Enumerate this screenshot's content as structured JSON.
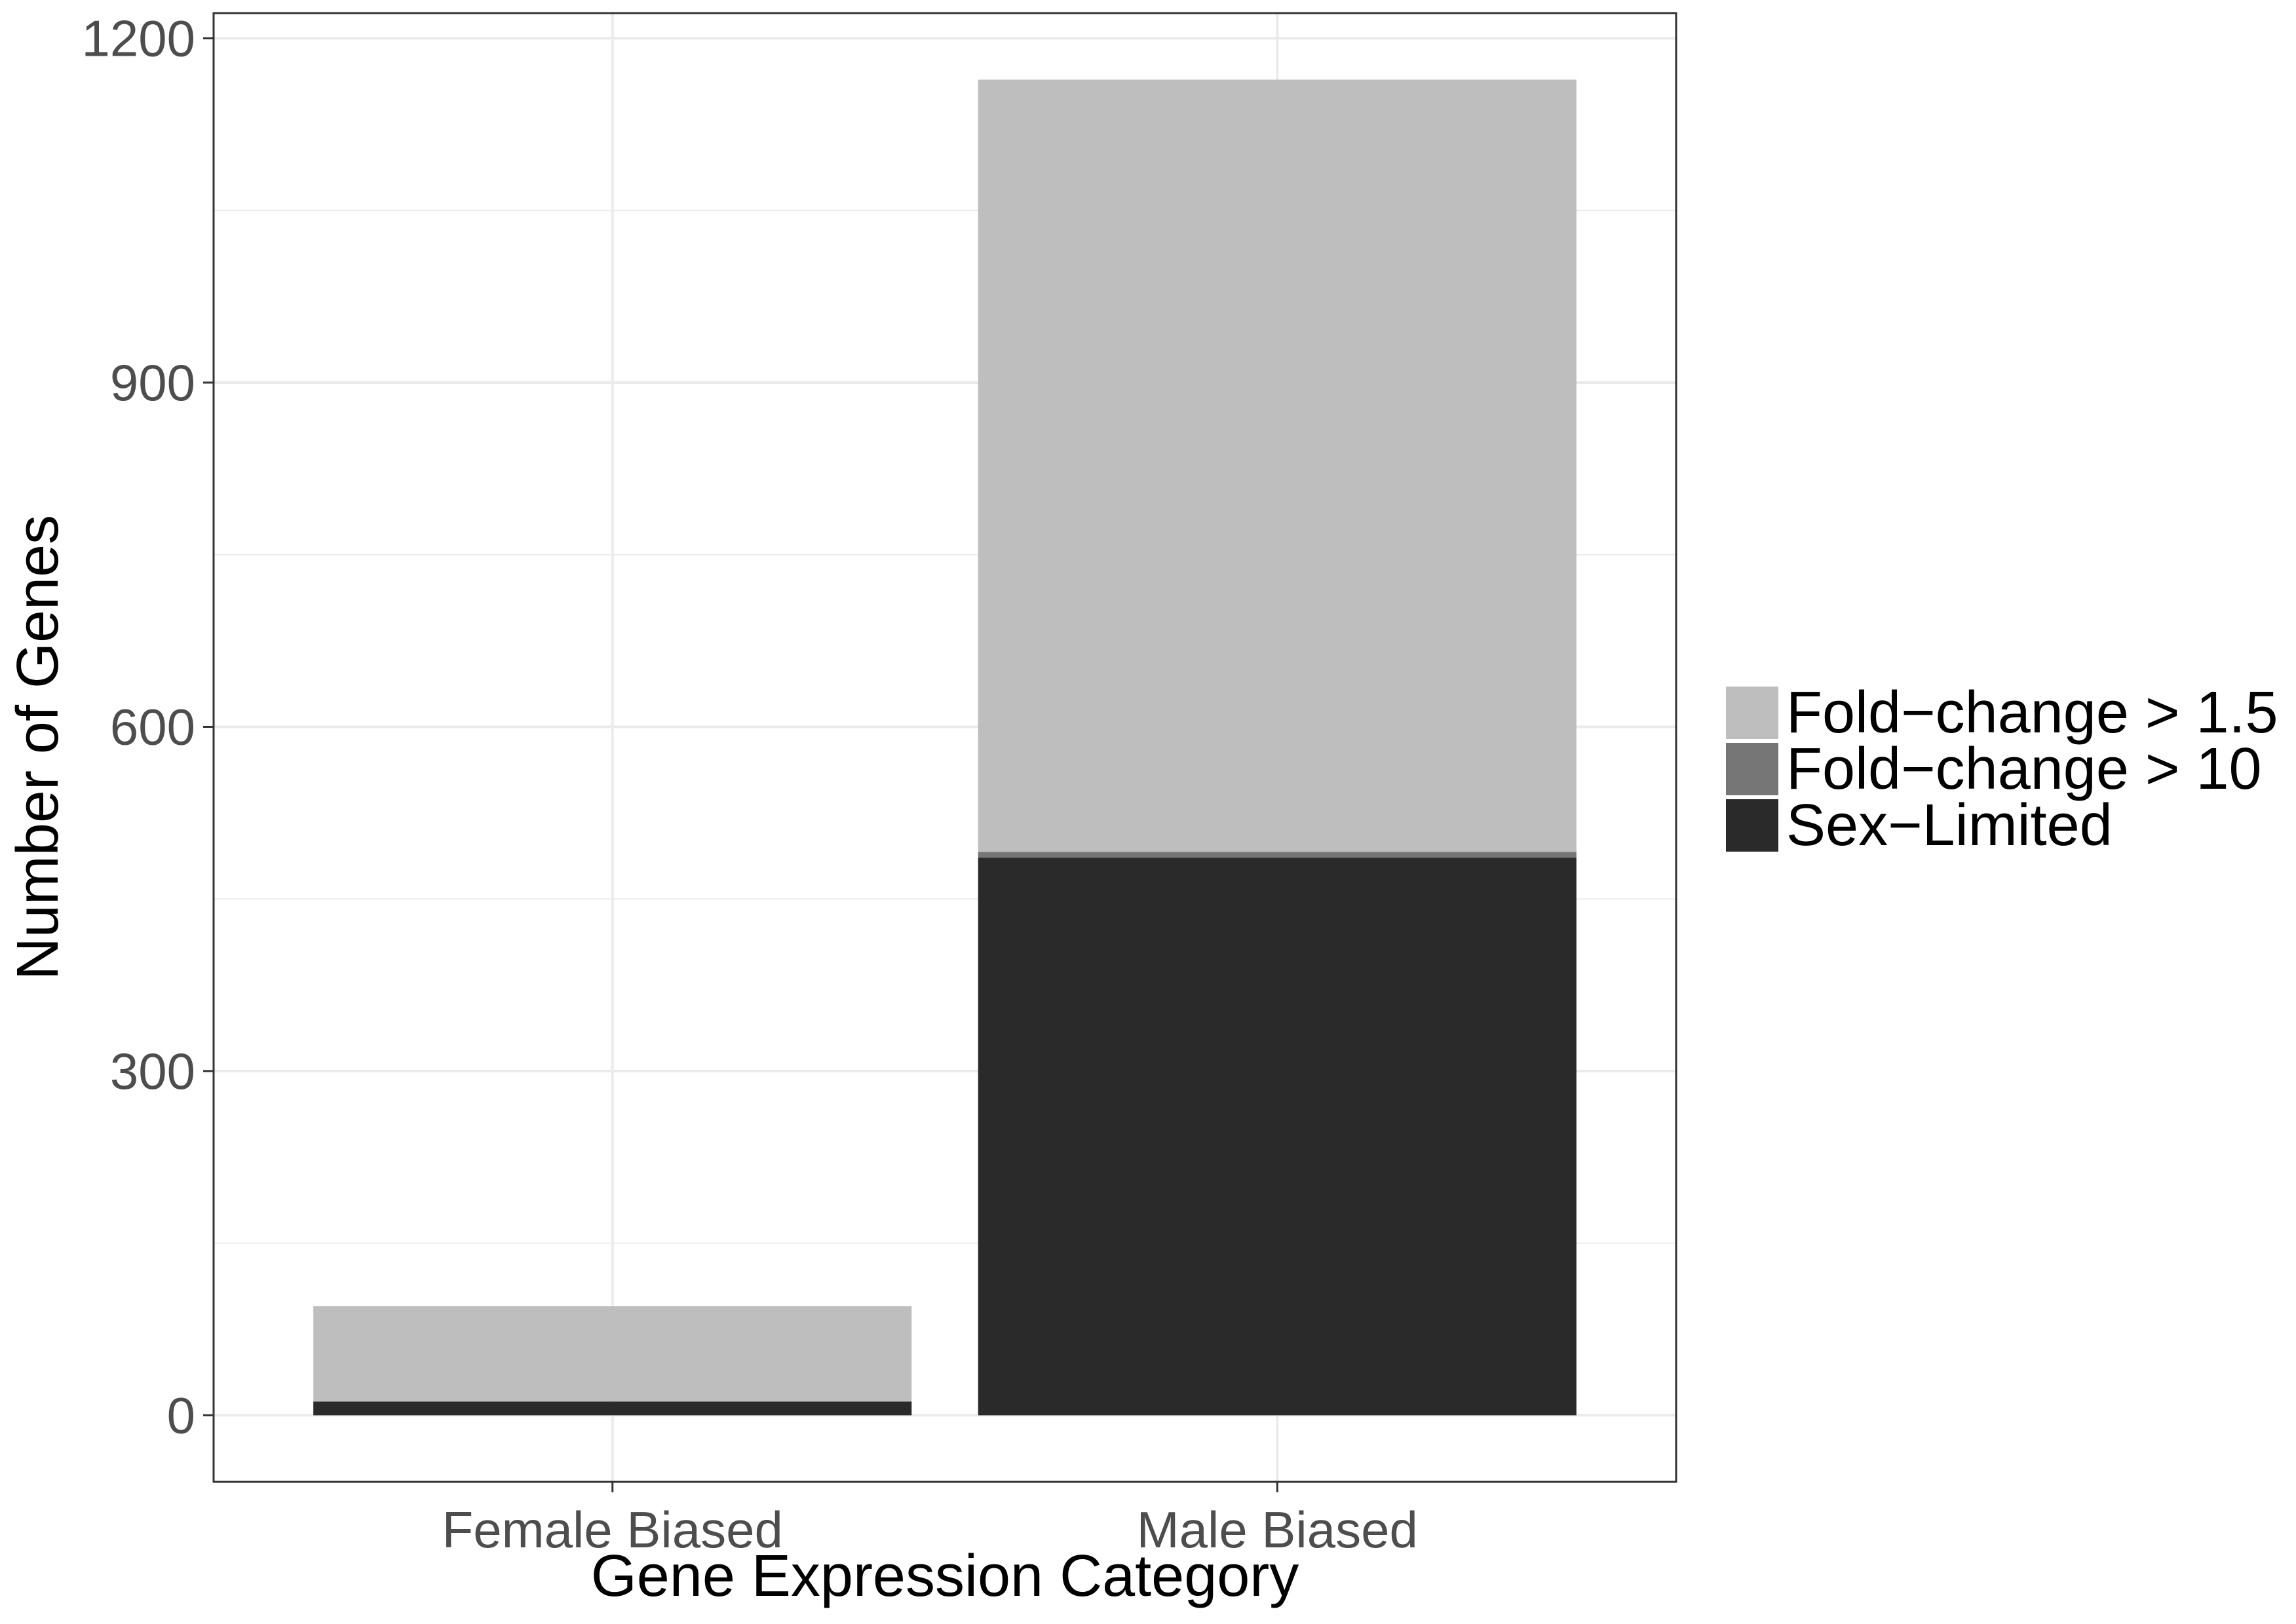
{
  "chart_data": {
    "type": "bar",
    "stacked": true,
    "categories": [
      "Female Biased",
      "Male Biased"
    ],
    "series": [
      {
        "name": "Sex−Limited",
        "values": [
          12,
          486
        ],
        "color": "#2a2a2a"
      },
      {
        "name": "Fold−change > 10",
        "values": [
          0,
          5
        ],
        "color": "#767676"
      },
      {
        "name": "Fold−change > 1.5",
        "values": [
          83,
          673
        ],
        "color": "#bebebe"
      }
    ],
    "legend_order": [
      "Fold−change > 1.5",
      "Fold−change > 10",
      "Sex−Limited"
    ],
    "xlabel": "Gene Expression Category",
    "ylabel": "Number of Genes",
    "ylim": [
      -58,
      1222
    ],
    "yticks": [
      0,
      300,
      600,
      900,
      1200
    ],
    "yticks_minor": [
      150,
      450,
      750,
      1050
    ],
    "grid": true,
    "legend_position": "right",
    "colors": {
      "grid": "#ebebeb",
      "panel_border": "#333333",
      "tick_text": "#4d4d4d",
      "title_text": "#000000"
    }
  }
}
